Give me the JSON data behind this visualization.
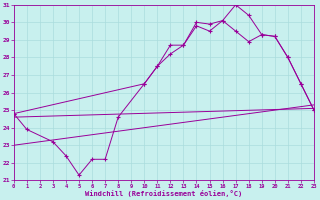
{
  "xlabel": "Windchill (Refroidissement éolien,°C)",
  "bg_color": "#c8f0ee",
  "line_color": "#990099",
  "grid_color": "#aadddd",
  "xlim": [
    0,
    23
  ],
  "ylim": [
    21,
    31
  ],
  "xticks": [
    0,
    1,
    2,
    3,
    4,
    5,
    6,
    7,
    8,
    9,
    10,
    11,
    12,
    13,
    14,
    15,
    16,
    17,
    18,
    19,
    20,
    21,
    22,
    23
  ],
  "yticks": [
    21,
    22,
    23,
    24,
    25,
    26,
    27,
    28,
    29,
    30,
    31
  ],
  "line1_x": [
    0,
    1,
    3,
    4,
    5,
    6,
    7,
    8,
    10,
    11,
    12,
    13,
    14,
    15,
    16,
    17,
    18,
    19,
    20,
    21,
    22,
    23
  ],
  "line1_y": [
    24.8,
    23.9,
    23.2,
    22.4,
    21.3,
    22.2,
    22.2,
    24.6,
    26.5,
    27.5,
    28.7,
    28.7,
    30.0,
    29.9,
    30.1,
    31.0,
    30.4,
    29.3,
    29.2,
    28.0,
    26.5,
    25.0
  ],
  "line2_x": [
    0,
    10,
    11,
    12,
    13,
    14,
    15,
    16,
    17,
    18,
    19,
    20,
    21,
    22,
    23
  ],
  "line2_y": [
    24.8,
    26.5,
    27.5,
    28.2,
    28.7,
    29.8,
    29.5,
    30.1,
    29.5,
    28.9,
    29.3,
    29.2,
    28.0,
    26.5,
    25.0
  ],
  "line3_x": [
    0,
    23
  ],
  "line3_y": [
    24.6,
    25.1
  ],
  "line4_x": [
    0,
    23
  ],
  "line4_y": [
    23.0,
    25.3
  ]
}
